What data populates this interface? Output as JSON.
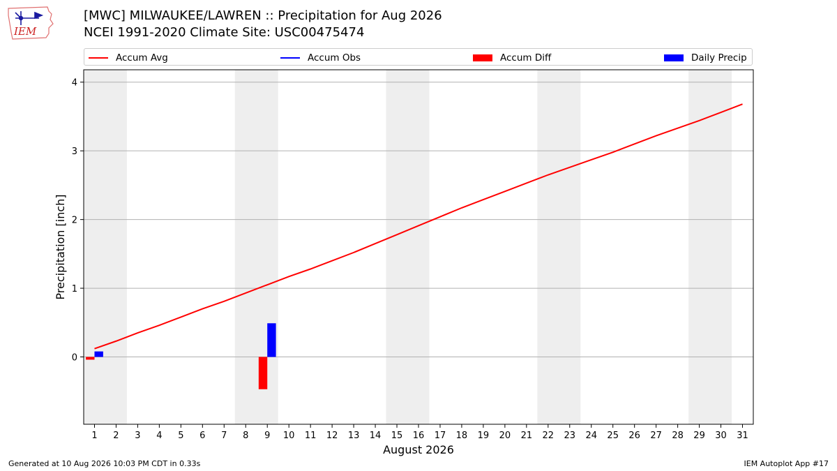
{
  "header": {
    "title_line1": "[MWC] MILWAUKEE/LAWREN :: Precipitation for Aug 2026",
    "title_line2": "NCEI 1991-2020 Climate Site: USC00475474",
    "logo_text": "IEM"
  },
  "legend": {
    "placement": "top",
    "items": [
      {
        "label": "Accum Avg",
        "color": "#ff0000",
        "kind": "line"
      },
      {
        "label": "Accum Obs",
        "color": "#0000ff",
        "kind": "line"
      },
      {
        "label": "Accum Diff",
        "color": "#ff0000",
        "kind": "bar"
      },
      {
        "label": "Daily Precip",
        "color": "#0000ff",
        "kind": "bar"
      }
    ]
  },
  "footer": {
    "left": "Generated at 10 Aug 2026 10:03 PM CDT in 0.33s",
    "right": "IEM Autoplot App #17"
  },
  "chart_data": {
    "type": "bar",
    "xlabel": "August 2026",
    "ylabel": "Precipitation [inch]",
    "xlim": [
      0.5,
      31.5
    ],
    "ylim": [
      -0.98,
      4.18
    ],
    "yticks": [
      0,
      1,
      2,
      3,
      4
    ],
    "x": [
      1,
      2,
      3,
      4,
      5,
      6,
      7,
      8,
      9,
      10,
      11,
      12,
      13,
      14,
      15,
      16,
      17,
      18,
      19,
      20,
      21,
      22,
      23,
      24,
      25,
      26,
      27,
      28,
      29,
      30,
      31
    ],
    "grid": "horizontal",
    "weekend_shading": [
      [
        0.5,
        2.5
      ],
      [
        7.5,
        9.5
      ],
      [
        14.5,
        16.5
      ],
      [
        21.5,
        23.5
      ],
      [
        28.5,
        30.5
      ]
    ],
    "series": [
      {
        "name": "Accum Avg",
        "type": "line",
        "color": "#ff0000",
        "values": [
          0.12,
          0.23,
          0.35,
          0.46,
          0.58,
          0.7,
          0.81,
          0.93,
          1.05,
          1.17,
          1.28,
          1.4,
          1.52,
          1.65,
          1.78,
          1.91,
          2.04,
          2.17,
          2.29,
          2.41,
          2.53,
          2.65,
          2.76,
          2.87,
          2.98,
          3.1,
          3.22,
          3.33,
          3.44,
          3.56,
          3.68
        ]
      },
      {
        "name": "Accum Diff",
        "type": "bar",
        "color": "#ff0000",
        "points": [
          {
            "x": 1,
            "y": -0.04
          },
          {
            "x": 9,
            "y": -0.47
          }
        ]
      },
      {
        "name": "Daily Precip",
        "type": "bar",
        "color": "#0000ff",
        "points": [
          {
            "x": 1,
            "y": 0.08
          },
          {
            "x": 9,
            "y": 0.49
          }
        ]
      }
    ]
  }
}
